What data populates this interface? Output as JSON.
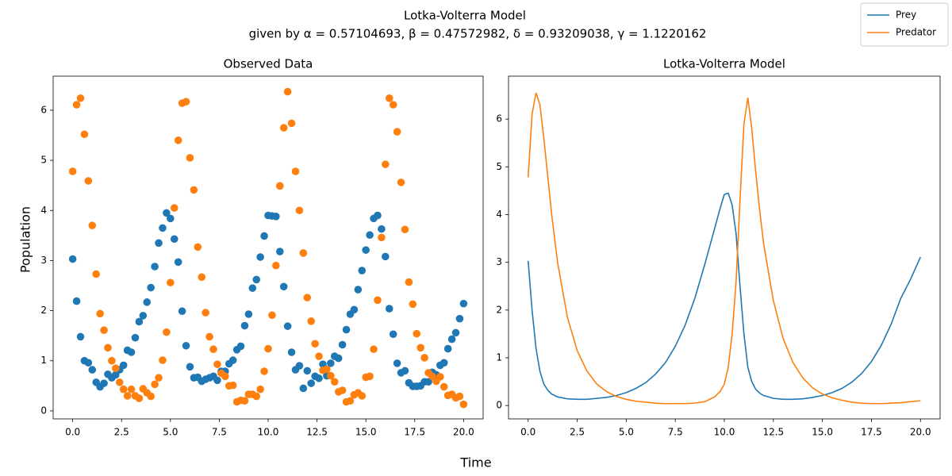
{
  "title": "Lotka-Volterra Model",
  "subtitle": "given by α = 0.57104693, β = 0.47572982, δ = 0.93209038, γ = 1.1220162",
  "x_label": "Time",
  "y_label": "Population",
  "legend": "upper right",
  "chart_data": [
    {
      "type": "scatter",
      "title": "Observed Data",
      "x": [
        0,
        0.2,
        0.4,
        0.6,
        0.8,
        1,
        1.2,
        1.4,
        1.6,
        1.8,
        2,
        2.2,
        2.4,
        2.6,
        2.8,
        3,
        3.2,
        3.4,
        3.6,
        3.8,
        4,
        4.2,
        4.4,
        4.6,
        4.8,
        5,
        5.2,
        5.4,
        5.6,
        5.8,
        6,
        6.2,
        6.4,
        6.6,
        6.8,
        7,
        7.2,
        7.4,
        7.6,
        7.8,
        8,
        8.2,
        8.4,
        8.6,
        8.8,
        9,
        9.2,
        9.4,
        9.6,
        9.8,
        10,
        10.2,
        10.4,
        10.6,
        10.8,
        11,
        11.2,
        11.4,
        11.6,
        11.8,
        12,
        12.2,
        12.4,
        12.6,
        12.8,
        13,
        13.2,
        13.4,
        13.6,
        13.8,
        14,
        14.2,
        14.4,
        14.6,
        14.8,
        15,
        15.2,
        15.4,
        15.6,
        15.8,
        16,
        16.2,
        16.4,
        16.6,
        16.8,
        17,
        17.2,
        17.4,
        17.6,
        17.8,
        18,
        18.2,
        18.4,
        18.6,
        18.8,
        19,
        19.2,
        19.4,
        19.6,
        19.8,
        20
      ],
      "series": [
        {
          "color": "#1f77b4",
          "values": [
            3.03,
            2.19,
            1.48,
            1.0,
            0.96,
            0.82,
            0.57,
            0.48,
            0.55,
            0.73,
            0.66,
            0.72,
            0.82,
            0.91,
            1.21,
            1.17,
            1.46,
            1.78,
            1.9,
            2.17,
            2.46,
            2.88,
            3.35,
            3.65,
            3.95,
            3.84,
            3.43,
            2.97,
            1.99,
            1.3,
            0.88,
            0.66,
            0.67,
            0.59,
            0.63,
            0.66,
            0.69,
            0.61,
            0.79,
            0.79,
            0.94,
            1.01,
            1.22,
            1.29,
            1.7,
            1.93,
            2.45,
            2.62,
            3.07,
            3.49,
            3.9,
            3.89,
            3.88,
            3.18,
            2.48,
            1.69,
            1.17,
            0.82,
            0.9,
            0.45,
            0.8,
            0.55,
            0.69,
            0.65,
            0.93,
            0.7,
            0.95,
            1.09,
            1.05,
            1.32,
            1.62,
            1.93,
            2.02,
            2.42,
            2.8,
            3.21,
            3.51,
            3.84,
            3.9,
            3.63,
            3.08,
            2.04,
            1.53,
            0.95,
            0.76,
            0.8,
            0.56,
            0.49,
            0.49,
            0.5,
            0.58,
            0.58,
            0.77,
            0.72,
            0.91,
            0.96,
            1.24,
            1.43,
            1.56,
            1.84,
            2.14
          ]
        },
        {
          "color": "#ff7f0e",
          "values": [
            4.78,
            6.11,
            6.24,
            5.52,
            4.59,
            3.7,
            2.73,
            1.94,
            1.61,
            1.26,
            1.0,
            0.85,
            0.57,
            0.43,
            0.3,
            0.43,
            0.3,
            0.25,
            0.44,
            0.36,
            0.29,
            0.53,
            0.66,
            1.01,
            1.57,
            2.56,
            4.05,
            5.4,
            6.14,
            6.17,
            5.05,
            4.41,
            3.27,
            2.67,
            1.96,
            1.48,
            1.23,
            0.93,
            0.75,
            0.69,
            0.5,
            0.51,
            0.18,
            0.21,
            0.2,
            0.33,
            0.33,
            0.29,
            0.43,
            0.79,
            1.24,
            1.91,
            2.9,
            4.49,
            5.65,
            6.37,
            5.74,
            4.78,
            4.0,
            3.15,
            2.26,
            1.79,
            1.34,
            1.09,
            0.81,
            0.83,
            0.7,
            0.58,
            0.38,
            0.41,
            0.18,
            0.2,
            0.32,
            0.36,
            0.3,
            0.67,
            0.69,
            1.23,
            2.21,
            3.46,
            4.92,
            6.24,
            6.11,
            5.57,
            4.56,
            3.62,
            2.57,
            2.13,
            1.54,
            1.26,
            1.06,
            0.76,
            0.69,
            0.59,
            0.68,
            0.48,
            0.31,
            0.33,
            0.26,
            0.29,
            0.13
          ]
        }
      ],
      "xlim": [
        -1,
        21
      ],
      "xticks": [
        {
          "value": 0,
          "label": "0.0"
        },
        {
          "value": 2.5,
          "label": "2.5"
        },
        {
          "value": 5,
          "label": "5.0"
        },
        {
          "value": 7.5,
          "label": "7.5"
        },
        {
          "value": 10,
          "label": "10.0"
        },
        {
          "value": 12.5,
          "label": "12.5"
        },
        {
          "value": 15,
          "label": "15.0"
        },
        {
          "value": 17.5,
          "label": "17.5"
        },
        {
          "value": 20,
          "label": "20.0"
        }
      ],
      "ylim": [
        -0.16,
        6.68
      ],
      "yticks": [
        0,
        1,
        2,
        3,
        4,
        5,
        6
      ]
    },
    {
      "type": "line",
      "title": "Lotka-Volterra Model",
      "x": [
        0,
        0.2,
        0.4,
        0.6,
        0.8,
        1,
        1.2,
        1.5,
        2,
        2.5,
        3,
        3.5,
        4,
        4.5,
        5,
        5.5,
        6,
        6.5,
        7,
        7.5,
        8,
        8.5,
        9,
        9.5,
        9.8,
        10,
        10.2,
        10.4,
        10.6,
        10.8,
        11,
        11.2,
        11.4,
        11.6,
        11.8,
        12,
        12.5,
        13,
        13.5,
        14,
        14.5,
        15,
        15.5,
        16,
        16.5,
        17,
        17.5,
        18,
        18.5,
        19,
        19.5,
        20
      ],
      "series": [
        {
          "name": "Prey",
          "color": "#1f77b4",
          "values": [
            3.03,
            2.0,
            1.2,
            0.72,
            0.45,
            0.32,
            0.24,
            0.18,
            0.14,
            0.13,
            0.13,
            0.15,
            0.17,
            0.21,
            0.27,
            0.36,
            0.48,
            0.66,
            0.9,
            1.24,
            1.68,
            2.25,
            2.95,
            3.7,
            4.15,
            4.42,
            4.45,
            4.2,
            3.6,
            2.5,
            1.5,
            0.8,
            0.5,
            0.34,
            0.26,
            0.21,
            0.15,
            0.13,
            0.13,
            0.14,
            0.17,
            0.21,
            0.27,
            0.36,
            0.49,
            0.67,
            0.92,
            1.26,
            1.7,
            2.25,
            2.65,
            3.11
          ]
        },
        {
          "name": "Predator",
          "color": "#ff7f0e",
          "values": [
            4.78,
            6.1,
            6.55,
            6.3,
            5.6,
            4.8,
            4.0,
            3.0,
            1.85,
            1.15,
            0.72,
            0.45,
            0.29,
            0.19,
            0.13,
            0.09,
            0.07,
            0.05,
            0.04,
            0.04,
            0.04,
            0.05,
            0.08,
            0.18,
            0.3,
            0.45,
            0.8,
            1.5,
            2.6,
            4.3,
            5.9,
            6.45,
            5.8,
            4.9,
            4.1,
            3.4,
            2.2,
            1.4,
            0.9,
            0.58,
            0.37,
            0.24,
            0.16,
            0.11,
            0.07,
            0.05,
            0.04,
            0.04,
            0.05,
            0.06,
            0.08,
            0.1
          ]
        }
      ],
      "xlim": [
        -1,
        21
      ],
      "xticks": [
        {
          "value": 0,
          "label": "0.0"
        },
        {
          "value": 2.5,
          "label": "2.5"
        },
        {
          "value": 5,
          "label": "5.0"
        },
        {
          "value": 7.5,
          "label": "7.5"
        },
        {
          "value": 10,
          "label": "10.0"
        },
        {
          "value": 12.5,
          "label": "12.5"
        },
        {
          "value": 15,
          "label": "15.0"
        },
        {
          "value": 17.5,
          "label": "17.5"
        },
        {
          "value": 20,
          "label": "20.0"
        }
      ],
      "ylim": [
        -0.28,
        6.9
      ],
      "yticks": [
        0,
        1,
        2,
        3,
        4,
        5,
        6
      ]
    }
  ]
}
